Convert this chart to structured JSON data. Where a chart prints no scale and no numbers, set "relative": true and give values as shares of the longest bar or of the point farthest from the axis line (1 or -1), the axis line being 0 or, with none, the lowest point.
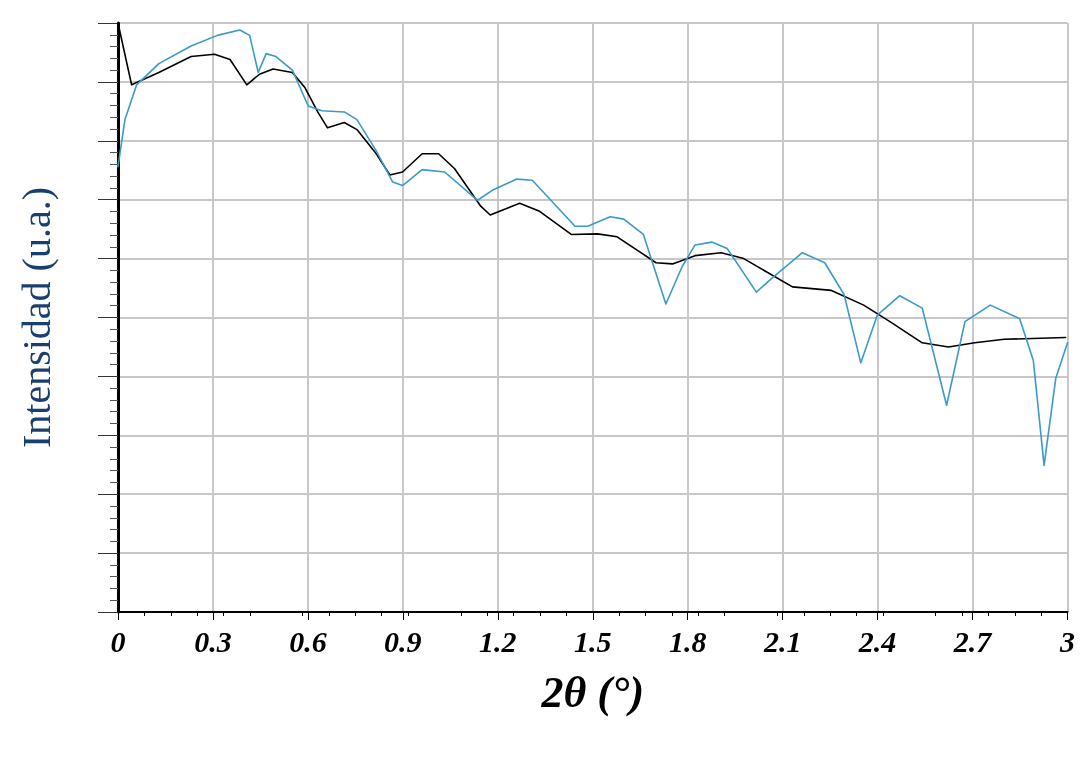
{
  "chart_data": {
    "type": "line",
    "xlabel": "2θ (°)",
    "ylabel": "Intensidad (u.a.)",
    "relative": true,
    "grid": true,
    "marker": "none",
    "line_style": "solid",
    "xlim": [
      0,
      3
    ],
    "xticks": [
      0,
      0.3,
      0.6,
      0.9,
      1.2,
      1.5,
      1.8,
      2.1,
      2.4,
      2.7,
      3
    ],
    "series": [
      {
        "color": "#000000",
        "x": [
          0,
          0.043,
          0.129,
          0.231,
          0.305,
          0.354,
          0.407,
          0.447,
          0.49,
          0.551,
          0.591,
          0.631,
          0.662,
          0.715,
          0.755,
          0.816,
          0.859,
          0.899,
          0.961,
          1.013,
          1.063,
          1.146,
          1.176,
          1.269,
          1.33,
          1.432,
          1.515,
          1.577,
          1.7,
          1.752,
          1.823,
          1.906,
          1.977,
          2.131,
          2.254,
          2.356,
          2.439,
          2.541,
          2.624,
          2.707,
          2.8,
          2.994
        ],
        "values": [
          1.0,
          0.895,
          0.916,
          0.943,
          0.947,
          0.938,
          0.895,
          0.913,
          0.922,
          0.916,
          0.89,
          0.849,
          0.822,
          0.831,
          0.819,
          0.778,
          0.742,
          0.747,
          0.778,
          0.778,
          0.753,
          0.689,
          0.674,
          0.694,
          0.681,
          0.641,
          0.642,
          0.637,
          0.593,
          0.591,
          0.605,
          0.61,
          0.6,
          0.552,
          0.546,
          0.521,
          0.493,
          0.457,
          0.45,
          0.457,
          0.463,
          0.466
        ]
      },
      {
        "color": "#3a9ac8",
        "x": [
          0,
          0.022,
          0.059,
          0.129,
          0.231,
          0.314,
          0.385,
          0.416,
          0.443,
          0.468,
          0.499,
          0.551,
          0.601,
          0.644,
          0.715,
          0.755,
          0.816,
          0.868,
          0.899,
          0.961,
          1.032,
          1.136,
          1.186,
          1.26,
          1.309,
          1.444,
          1.484,
          1.555,
          1.598,
          1.66,
          1.731,
          1.783,
          1.823,
          1.876,
          1.925,
          2.017,
          2.06,
          2.162,
          2.233,
          2.294,
          2.347,
          2.399,
          2.47,
          2.541,
          2.618,
          2.676,
          2.756,
          2.849,
          2.892,
          2.926,
          2.963,
          3.0
        ],
        "values": [
          0.756,
          0.836,
          0.895,
          0.931,
          0.961,
          0.979,
          0.988,
          0.979,
          0.916,
          0.948,
          0.943,
          0.92,
          0.859,
          0.851,
          0.849,
          0.836,
          0.783,
          0.73,
          0.724,
          0.751,
          0.747,
          0.699,
          0.717,
          0.735,
          0.733,
          0.655,
          0.655,
          0.671,
          0.667,
          0.641,
          0.523,
          0.587,
          0.623,
          0.628,
          0.617,
          0.543,
          0.564,
          0.61,
          0.593,
          0.539,
          0.423,
          0.504,
          0.537,
          0.516,
          0.351,
          0.493,
          0.521,
          0.498,
          0.427,
          0.249,
          0.397,
          0.457
        ]
      }
    ]
  }
}
